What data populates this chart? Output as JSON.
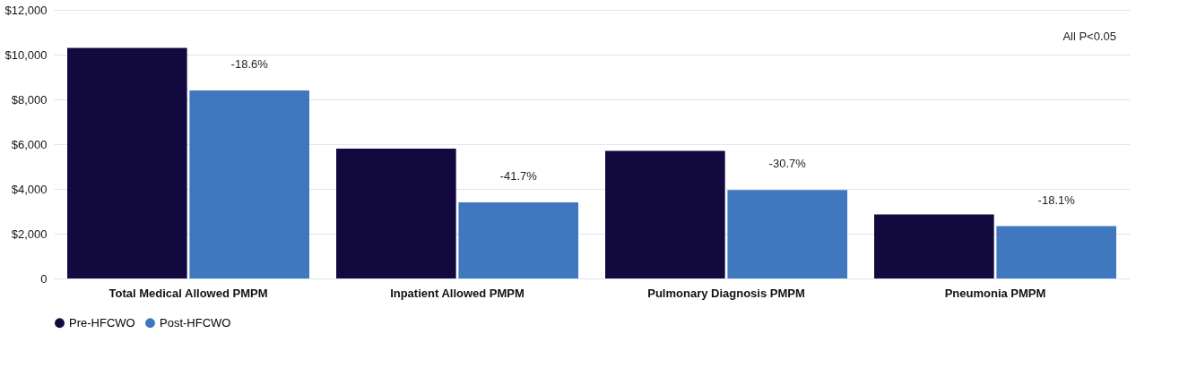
{
  "chart_data": {
    "type": "bar",
    "categories": [
      "Total Medical Allowed PMPM",
      "Inpatient Allowed PMPM",
      "Pulmonary Diagnosis PMPM",
      "Pneumonia PMPM"
    ],
    "series": [
      {
        "name": "Pre-HFCWO",
        "color": "#12093f",
        "values": [
          10300,
          5800,
          5700,
          2860
        ]
      },
      {
        "name": "Post-HFCWO",
        "color": "#3f78bf",
        "values": [
          8400,
          3400,
          3950,
          2340
        ]
      }
    ],
    "ylim": [
      0,
      12000
    ],
    "yticks": [
      {
        "value": 0,
        "label": "0"
      },
      {
        "value": 2000,
        "label": "$2,000"
      },
      {
        "value": 4000,
        "label": "$4,000"
      },
      {
        "value": 6000,
        "label": "$6,000"
      },
      {
        "value": 8000,
        "label": "$8,000"
      },
      {
        "value": 10000,
        "label": "$10,000"
      },
      {
        "value": 12000,
        "label": "$12,000"
      }
    ],
    "annotations": [
      "-18.6%",
      "-41.7%",
      "-30.7%",
      "-18.1%",
      "All P<0.05"
    ],
    "grid": "y",
    "legend": "bottom left"
  }
}
